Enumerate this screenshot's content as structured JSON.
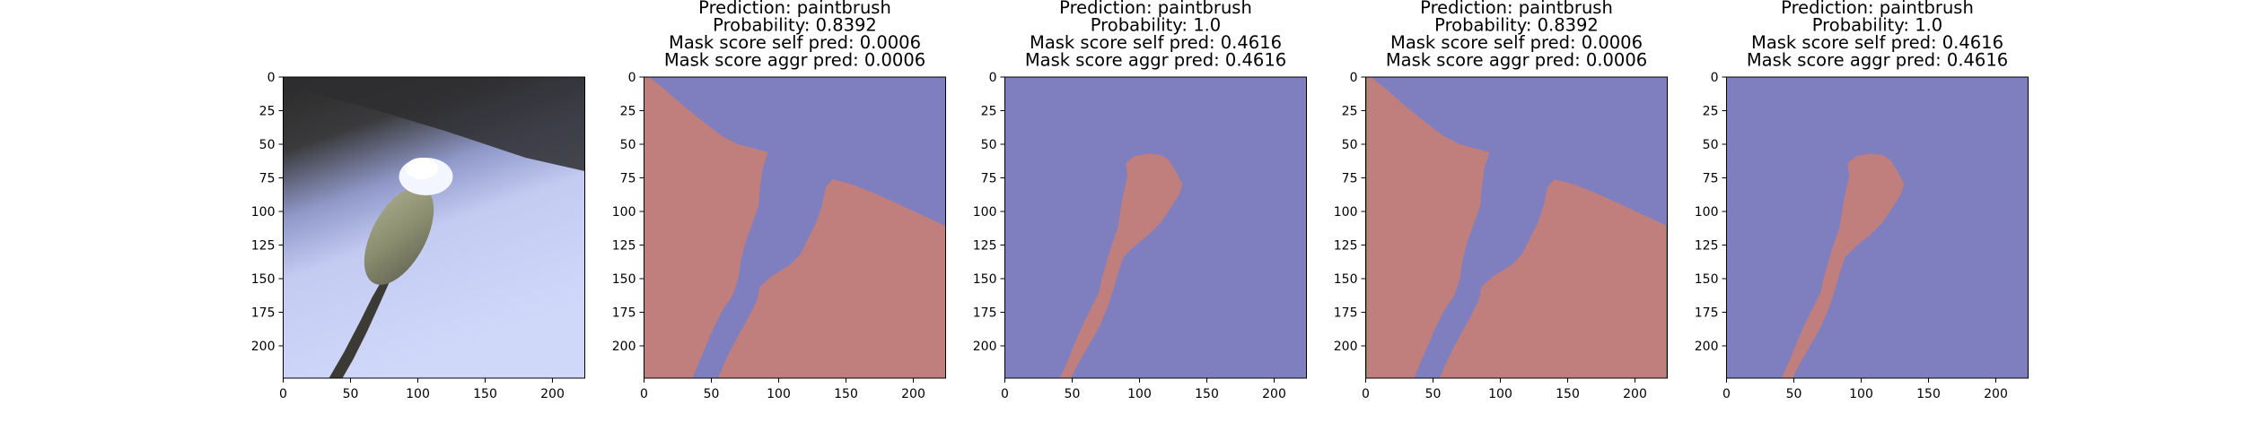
{
  "chart_data": [
    {
      "type": "image",
      "content": "photo of a snow-capped pussy willow catkin on a branch",
      "xlim": [
        0,
        224
      ],
      "ylim": [
        224,
        0
      ],
      "xticks": [
        0,
        50,
        100,
        150,
        200
      ],
      "yticks": [
        0,
        25,
        50,
        75,
        100,
        125,
        150,
        175,
        200
      ],
      "title_lines": []
    },
    {
      "type": "heatmap",
      "content": "segmentation mask overlay (red = masked region, blue = background)",
      "xlim": [
        0,
        224
      ],
      "ylim": [
        224,
        0
      ],
      "xticks": [
        0,
        50,
        100,
        150,
        200
      ],
      "yticks": [
        0,
        25,
        50,
        75,
        100,
        125,
        150,
        175,
        200
      ],
      "title_lines": [
        "Prediction: paintbrush",
        "Probability: 0.8392",
        "Mask score self pred: 0.0006",
        "Mask score aggr pred: 0.0006"
      ]
    },
    {
      "type": "heatmap",
      "content": "segmentation mask overlay (red = catkin region, blue = background)",
      "xlim": [
        0,
        224
      ],
      "ylim": [
        224,
        0
      ],
      "xticks": [
        0,
        50,
        100,
        150,
        200
      ],
      "yticks": [
        0,
        25,
        50,
        75,
        100,
        125,
        150,
        175,
        200
      ],
      "title_lines": [
        "Prediction: paintbrush",
        "Probability: 1.0",
        "Mask score self pred: 0.4616",
        "Mask score aggr pred: 0.4616"
      ]
    },
    {
      "type": "heatmap",
      "content": "segmentation mask overlay (red = masked region, blue = background)",
      "xlim": [
        0,
        224
      ],
      "ylim": [
        224,
        0
      ],
      "xticks": [
        0,
        50,
        100,
        150,
        200
      ],
      "yticks": [
        0,
        25,
        50,
        75,
        100,
        125,
        150,
        175,
        200
      ],
      "title_lines": [
        "Prediction: paintbrush",
        "Probability: 0.8392",
        "Mask score self pred: 0.0006",
        "Mask score aggr pred: 0.0006"
      ]
    },
    {
      "type": "heatmap",
      "content": "segmentation mask overlay (red = catkin region, blue = background)",
      "xlim": [
        0,
        224
      ],
      "ylim": [
        224,
        0
      ],
      "xticks": [
        0,
        50,
        100,
        150,
        200
      ],
      "yticks": [
        0,
        25,
        50,
        75,
        100,
        125,
        150,
        175,
        200
      ],
      "title_lines": [
        "Prediction: paintbrush",
        "Probability: 1.0",
        "Mask score self pred: 0.4616",
        "Mask score aggr pred: 0.4616"
      ]
    }
  ],
  "colors": {
    "mask_red": "#c07f7c",
    "mask_blue": "#7f7fbf",
    "photo_sky": "#cdd5f8",
    "photo_dark": "#2f2f2f"
  }
}
